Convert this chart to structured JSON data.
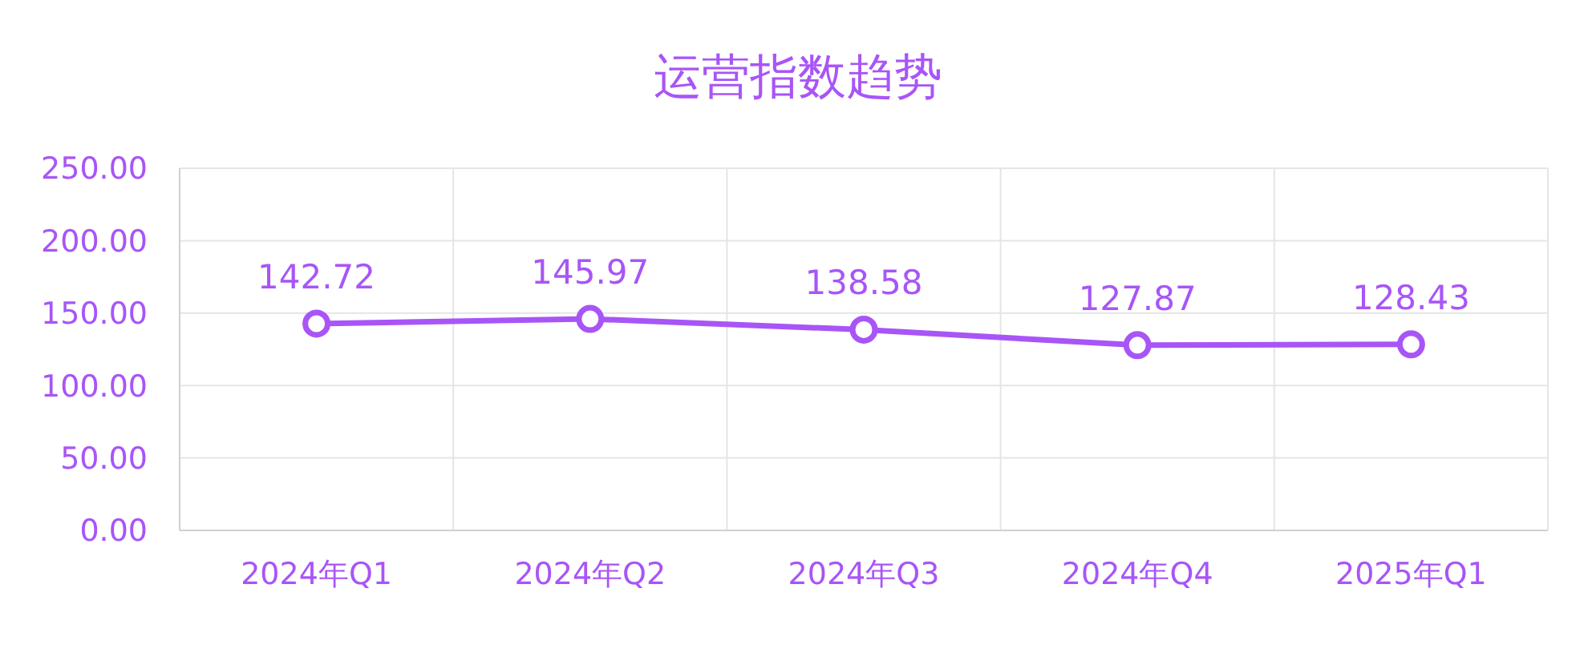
{
  "chart_data": {
    "type": "line",
    "title": "运营指数趋势",
    "categories": [
      "2024年Q1",
      "2024年Q2",
      "2024年Q3",
      "2024年Q4",
      "2025年Q1"
    ],
    "series": [
      {
        "color": "#a855f7",
        "values": [
          142.72,
          145.97,
          138.58,
          127.87,
          128.43
        ]
      }
    ],
    "ylim": [
      0,
      250
    ],
    "yticks": [
      {
        "value": 0,
        "label": "0.00"
      },
      {
        "value": 50,
        "label": "50.00"
      },
      {
        "value": 100,
        "label": "100.00"
      },
      {
        "value": 150,
        "label": "150.00"
      },
      {
        "value": 200,
        "label": "200.00"
      },
      {
        "value": 250,
        "label": "250.00"
      }
    ],
    "grid": true,
    "data_labels": true,
    "marker": "circle",
    "line_style": "solid"
  }
}
